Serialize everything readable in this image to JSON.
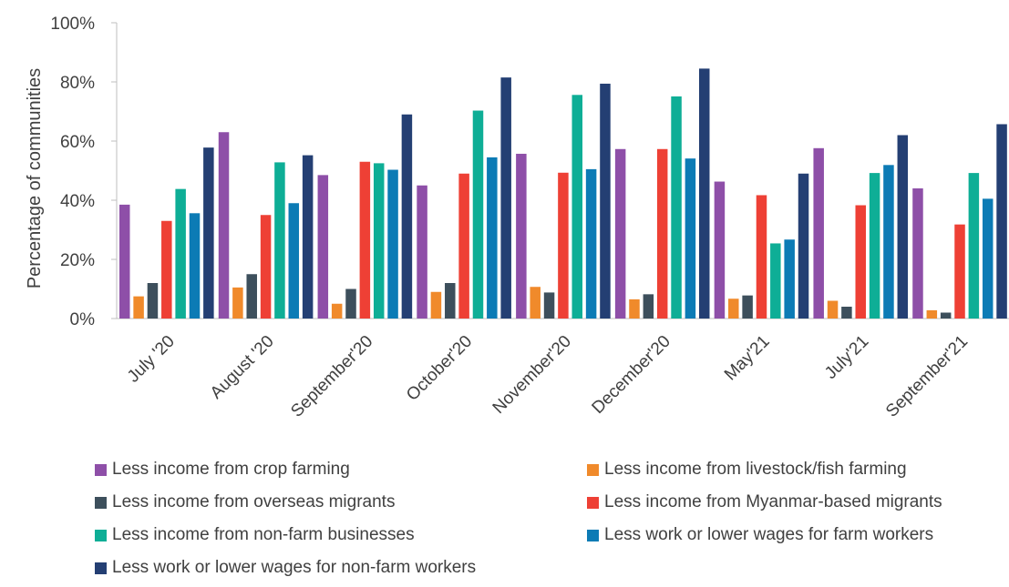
{
  "chart_data": {
    "type": "bar",
    "title": "",
    "ylabel": "Percentage of communities",
    "xlabel": "",
    "ylim": [
      0,
      100
    ],
    "yticks": [
      0,
      20,
      40,
      60,
      80,
      100
    ],
    "ytick_labels": [
      "0%",
      "20%",
      "40%",
      "60%",
      "80%",
      "100%"
    ],
    "grid": false,
    "legend_position": "bottom",
    "categories": [
      "July '20",
      "August '20",
      "September'20",
      "October'20",
      "November'20",
      "December'20",
      "May'21",
      "July'21",
      "September'21"
    ],
    "series": [
      {
        "name": "Less income from crop farming",
        "color": "#8E4FA8",
        "values": [
          38.5,
          63,
          48.5,
          45,
          55.7,
          57.3,
          46.3,
          57.6,
          44
        ]
      },
      {
        "name": "Less income from livestock/fish farming",
        "color": "#F08A2B",
        "values": [
          7.5,
          10.5,
          5,
          9,
          10.7,
          6.5,
          6.7,
          6,
          2.8
        ]
      },
      {
        "name": "Less income from overseas migrants",
        "color": "#3D4F5C",
        "values": [
          12,
          15,
          10,
          12,
          8.8,
          8.2,
          7.8,
          4,
          2
        ]
      },
      {
        "name": "Less income from Myanmar-based migrants",
        "color": "#EE4035",
        "values": [
          33,
          35,
          53,
          49,
          49.3,
          57.3,
          41.7,
          38.3,
          31.8
        ]
      },
      {
        "name": "Less income from non-farm businesses",
        "color": "#0EAE96",
        "values": [
          43.8,
          52.8,
          52.5,
          70.3,
          75.6,
          75.1,
          25.4,
          49.2,
          49.2
        ]
      },
      {
        "name": "Less work or lower wages for farm workers",
        "color": "#0C7BB5",
        "values": [
          35.6,
          39,
          50.3,
          54.5,
          50.5,
          54.1,
          26.7,
          51.9,
          40.5
        ]
      },
      {
        "name": "Less work or lower wages for non-farm workers",
        "color": "#243F73",
        "values": [
          57.8,
          55.2,
          69,
          81.5,
          79.4,
          84.5,
          49,
          62,
          65.7
        ]
      }
    ]
  }
}
